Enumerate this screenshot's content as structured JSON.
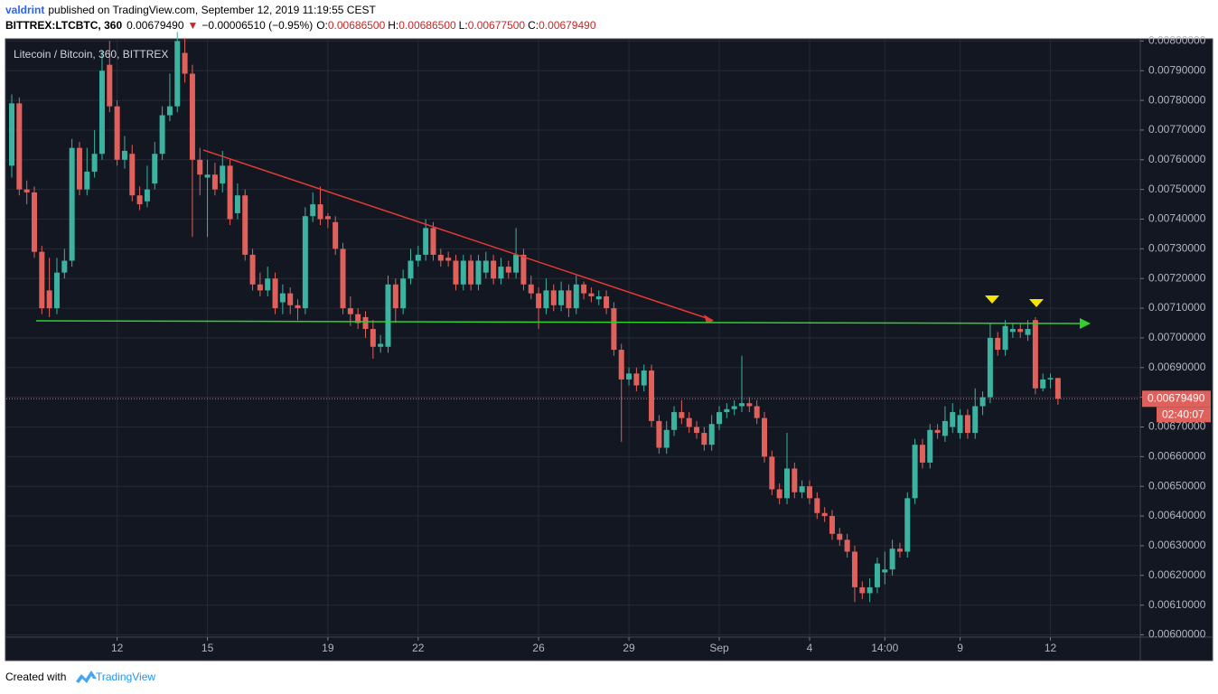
{
  "header": {
    "author": "valdrint",
    "published": "published on TradingView.com, September 12, 2019 11:19:55 CEST",
    "symbol": "BITTREX:LTCBTC, 360",
    "last": "0.00679490",
    "arrow": "▼",
    "change": "−0.00006510 (−0.95%)",
    "o_label": "O:",
    "o": "0.00686500",
    "h_label": "H:",
    "h": "0.00686500",
    "l_label": "L:",
    "l": "0.00677500",
    "c_label": "C:",
    "c": "0.00679490"
  },
  "chart_data": {
    "type": "candlestick",
    "legend": "Litecoin / Bitcoin, 360, BITTREX",
    "up_color": "#3bb3a0",
    "down_color": "#e0605b",
    "open": [
      0.00758,
      0.00779,
      0.0075,
      0.00749,
      0.00729,
      0.00716,
      0.0071,
      0.00722,
      0.00726,
      0.00764,
      0.0075,
      0.00756,
      0.00762,
      0.00792,
      0.00778,
      0.0076,
      0.00762,
      0.00748,
      0.00746,
      0.00752,
      0.00762,
      0.00775,
      0.00778,
      0.00796,
      0.00789,
      0.0076,
      0.00754,
      0.00755,
      0.00752,
      0.00758,
      0.00742,
      0.00748,
      0.00728,
      0.00718,
      0.00716,
      0.0072,
      0.00712,
      0.00715,
      0.00711,
      0.0071,
      0.00741,
      0.00745,
      0.00741,
      0.00739,
      0.0073,
      0.0071,
      0.00708,
      0.00707,
      0.00703,
      0.00697,
      0.00697,
      0.00718,
      0.0071,
      0.0072,
      0.00726,
      0.00728,
      0.00737,
      0.00728,
      0.00727,
      0.00726,
      0.00718,
      0.00726,
      0.00718,
      0.00722,
      0.00726,
      0.0072,
      0.00724,
      0.00722,
      0.00728,
      0.00718,
      0.00715,
      0.0071,
      0.00716,
      0.00711,
      0.00716,
      0.0071,
      0.00718,
      0.00715,
      0.00713,
      0.00714,
      0.0071,
      0.00696,
      0.00686,
      0.00688,
      0.00684,
      0.00689,
      0.00672,
      0.00663,
      0.00669,
      0.00675,
      0.00673,
      0.0067,
      0.00668,
      0.00664,
      0.00671,
      0.00675,
      0.00676,
      0.00677,
      0.00678,
      0.00677,
      0.00673,
      0.0066,
      0.00649,
      0.00646,
      0.00656,
      0.00648,
      0.0065,
      0.00646,
      0.00641,
      0.0064,
      0.00634,
      0.00632,
      0.00628,
      0.00616,
      0.00614,
      0.00616,
      0.00621,
      0.00622,
      0.00629,
      0.00628,
      0.00646,
      0.00664,
      0.00658,
      0.00669,
      0.00667,
      0.0067,
      0.00668,
      0.00674,
      0.00668,
      0.00677,
      0.0068,
      0.007,
      0.00696,
      0.00702,
      0.00703,
      0.00701,
      0.00706,
      0.00683,
      0.00686,
      0.006865
    ],
    "high": [
      0.00782,
      0.00781,
      0.00753,
      0.00751,
      0.00731,
      0.00727,
      0.00727,
      0.0073,
      0.00767,
      0.00766,
      0.00764,
      0.0077,
      0.00797,
      0.008,
      0.0078,
      0.00768,
      0.00765,
      0.00751,
      0.00758,
      0.00766,
      0.00778,
      0.00789,
      0.00803,
      0.00801,
      0.00792,
      0.00764,
      0.0076,
      0.00759,
      0.00763,
      0.0076,
      0.00752,
      0.0075,
      0.0073,
      0.00722,
      0.00724,
      0.00722,
      0.00718,
      0.00717,
      0.00713,
      0.00744,
      0.00749,
      0.00751,
      0.00742,
      0.00741,
      0.00732,
      0.00714,
      0.0071,
      0.00709,
      0.00706,
      0.00701,
      0.00721,
      0.0072,
      0.00723,
      0.0073,
      0.00731,
      0.0074,
      0.00739,
      0.0073,
      0.00729,
      0.00728,
      0.00728,
      0.00728,
      0.00728,
      0.00729,
      0.00728,
      0.00727,
      0.00726,
      0.00737,
      0.0073,
      0.00721,
      0.00717,
      0.0072,
      0.00718,
      0.00719,
      0.00718,
      0.00721,
      0.00719,
      0.00717,
      0.00716,
      0.00716,
      0.00712,
      0.00698,
      0.0069,
      0.0069,
      0.00691,
      0.00691,
      0.00674,
      0.00672,
      0.00677,
      0.00679,
      0.00675,
      0.00672,
      0.0067,
      0.00674,
      0.00677,
      0.00678,
      0.00679,
      0.00694,
      0.0068,
      0.00679,
      0.00675,
      0.00662,
      0.00651,
      0.00668,
      0.00658,
      0.00652,
      0.00652,
      0.00648,
      0.00643,
      0.00642,
      0.00636,
      0.00634,
      0.0063,
      0.00618,
      0.00619,
      0.00626,
      0.00628,
      0.00632,
      0.00631,
      0.00648,
      0.00666,
      0.00666,
      0.00671,
      0.00671,
      0.00677,
      0.00678,
      0.00676,
      0.00676,
      0.00683,
      0.00682,
      0.00705,
      0.00702,
      0.00706,
      0.00705,
      0.00705,
      0.00706,
      0.00707,
      0.00688,
      0.00688,
      0.006865
    ],
    "low": [
      0.00754,
      0.00748,
      0.00745,
      0.00727,
      0.00708,
      0.00707,
      0.00708,
      0.0072,
      0.00724,
      0.00748,
      0.00748,
      0.00754,
      0.0076,
      0.00776,
      0.00758,
      0.00757,
      0.00746,
      0.00743,
      0.00744,
      0.0075,
      0.0076,
      0.00773,
      0.00776,
      0.00786,
      0.00734,
      0.00748,
      0.00734,
      0.00748,
      0.00749,
      0.00738,
      0.0074,
      0.00726,
      0.00716,
      0.00714,
      0.00714,
      0.00708,
      0.00708,
      0.00708,
      0.00706,
      0.00708,
      0.00739,
      0.00738,
      0.00737,
      0.00728,
      0.00708,
      0.00704,
      0.00703,
      0.007,
      0.00693,
      0.00695,
      0.00695,
      0.00705,
      0.00708,
      0.00718,
      0.00724,
      0.00726,
      0.00726,
      0.00724,
      0.00724,
      0.00716,
      0.00716,
      0.00716,
      0.00716,
      0.0072,
      0.00718,
      0.00718,
      0.0072,
      0.0072,
      0.00716,
      0.00713,
      0.00703,
      0.00708,
      0.00709,
      0.00709,
      0.00707,
      0.00708,
      0.00713,
      0.00712,
      0.00711,
      0.00708,
      0.00694,
      0.00665,
      0.00684,
      0.00682,
      0.00682,
      0.0067,
      0.00661,
      0.00661,
      0.00667,
      0.00671,
      0.00668,
      0.00666,
      0.00662,
      0.00662,
      0.00669,
      0.00673,
      0.00674,
      0.00675,
      0.00675,
      0.00671,
      0.00658,
      0.00647,
      0.00644,
      0.00644,
      0.00646,
      0.00646,
      0.00644,
      0.00639,
      0.00638,
      0.00632,
      0.0063,
      0.00626,
      0.00611,
      0.00612,
      0.00611,
      0.00614,
      0.00617,
      0.0062,
      0.00626,
      0.00626,
      0.00644,
      0.00656,
      0.00656,
      0.00666,
      0.00665,
      0.00668,
      0.00666,
      0.00666,
      0.00666,
      0.00674,
      0.00678,
      0.00694,
      0.00694,
      0.007,
      0.007,
      0.00699,
      0.00681,
      0.00682,
      0.00683,
      0.006775
    ],
    "close": [
      0.00779,
      0.0075,
      0.00749,
      0.00729,
      0.0071,
      0.0071,
      0.00722,
      0.00726,
      0.00764,
      0.0075,
      0.00756,
      0.00762,
      0.0079,
      0.00778,
      0.0076,
      0.00763,
      0.00748,
      0.00745,
      0.0075,
      0.00762,
      0.00775,
      0.00778,
      0.008,
      0.00789,
      0.0076,
      0.00755,
      0.00755,
      0.0075,
      0.00758,
      0.0074,
      0.00748,
      0.00728,
      0.00718,
      0.00716,
      0.0072,
      0.0071,
      0.00715,
      0.00711,
      0.0071,
      0.00741,
      0.00745,
      0.0074,
      0.0074,
      0.0073,
      0.0071,
      0.00708,
      0.00705,
      0.00703,
      0.00697,
      0.00698,
      0.00718,
      0.0071,
      0.0072,
      0.00726,
      0.00728,
      0.00737,
      0.00728,
      0.00726,
      0.00726,
      0.00718,
      0.00726,
      0.00718,
      0.00726,
      0.00726,
      0.0072,
      0.00724,
      0.00722,
      0.00728,
      0.00718,
      0.00715,
      0.0071,
      0.00716,
      0.00711,
      0.00716,
      0.0071,
      0.00718,
      0.00715,
      0.00714,
      0.00714,
      0.0071,
      0.00696,
      0.00686,
      0.00688,
      0.00684,
      0.00689,
      0.00672,
      0.00663,
      0.00669,
      0.00675,
      0.00673,
      0.0067,
      0.00668,
      0.00664,
      0.00671,
      0.00675,
      0.00676,
      0.00677,
      0.00678,
      0.00677,
      0.00673,
      0.0066,
      0.00649,
      0.00646,
      0.00656,
      0.00648,
      0.0065,
      0.00646,
      0.00641,
      0.0064,
      0.00634,
      0.00632,
      0.00628,
      0.00616,
      0.00614,
      0.00616,
      0.00624,
      0.00622,
      0.00629,
      0.00628,
      0.00646,
      0.00664,
      0.00658,
      0.00669,
      0.00668,
      0.00672,
      0.00675,
      0.00674,
      0.00668,
      0.00677,
      0.0068,
      0.007,
      0.00696,
      0.00704,
      0.00703,
      0.00702,
      0.00703,
      0.00683,
      0.00686,
      0.006865,
      0.0067949
    ],
    "ylim": [
      0.0059923,
      0.0080042
    ],
    "yticks": [
      {
        "value": 0.006,
        "label": "0.00600000"
      },
      {
        "value": 0.0061,
        "label": "0.00610000"
      },
      {
        "value": 0.0062,
        "label": "0.00620000"
      },
      {
        "value": 0.0063,
        "label": "0.00630000"
      },
      {
        "value": 0.0064,
        "label": "0.00640000"
      },
      {
        "value": 0.0065,
        "label": "0.00650000"
      },
      {
        "value": 0.0066,
        "label": "0.00660000"
      },
      {
        "value": 0.0067,
        "label": "0.00670000"
      },
      {
        "value": 0.0068,
        "label": "0.00680000"
      },
      {
        "value": 0.0069,
        "label": "0.00690000"
      },
      {
        "value": 0.007,
        "label": "0.00700000"
      },
      {
        "value": 0.0071,
        "label": "0.00710000"
      },
      {
        "value": 0.0072,
        "label": "0.00720000"
      },
      {
        "value": 0.0073,
        "label": "0.00730000"
      },
      {
        "value": 0.0074,
        "label": "0.00740000"
      },
      {
        "value": 0.0075,
        "label": "0.00750000"
      },
      {
        "value": 0.0076,
        "label": "0.00760000"
      },
      {
        "value": 0.0077,
        "label": "0.00770000"
      },
      {
        "value": 0.0078,
        "label": "0.00780000"
      },
      {
        "value": 0.0079,
        "label": "0.00790000"
      },
      {
        "value": 0.008,
        "label": "0.00800000"
      }
    ],
    "xticks": [
      {
        "value": 14,
        "label": "12"
      },
      {
        "value": 26,
        "label": "15"
      },
      {
        "value": 42,
        "label": "19"
      },
      {
        "value": 54,
        "label": "22"
      },
      {
        "value": 70,
        "label": "26"
      },
      {
        "value": 82,
        "label": "29"
      },
      {
        "value": 94,
        "label": "Sep"
      },
      {
        "value": 106,
        "label": "4"
      },
      {
        "value": 116,
        "label": "14:00"
      },
      {
        "value": 126,
        "label": "9"
      },
      {
        "value": 138,
        "label": "12"
      }
    ],
    "grid": true,
    "last_price": {
      "value": 0.0067949,
      "label": "0.00679490"
    },
    "countdown": "02:40:07"
  },
  "footer": {
    "created": "Created with",
    "brand": "TradingView"
  }
}
